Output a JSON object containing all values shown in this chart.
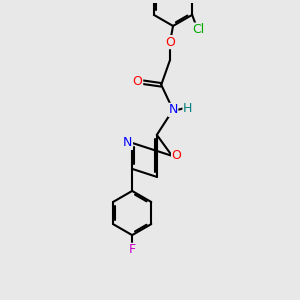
{
  "bg_color": "#e8e8e8",
  "bond_color": "#000000",
  "bond_width": 1.5,
  "atom_colors": {
    "Cl": "#00aa00",
    "O": "#ff0000",
    "N": "#0000ff",
    "F": "#cc00cc",
    "H": "#008080",
    "C": "#000000"
  },
  "font_size": 9,
  "figsize": [
    3.0,
    3.0
  ],
  "dpi": 100
}
